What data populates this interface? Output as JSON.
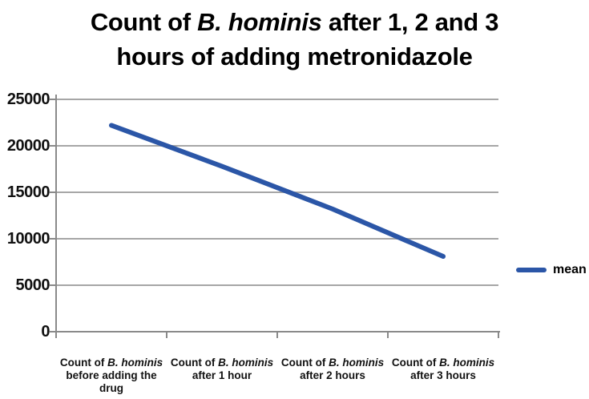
{
  "title": {
    "line1_prefix": "Count of ",
    "line1_italic": "B. hominis",
    "line1_suffix": " after 1, 2 and 3",
    "line2": "hours of adding metronidazole"
  },
  "legend": {
    "label": "mean"
  },
  "chart_data": {
    "type": "line",
    "title": "Count of B. hominis after 1, 2 and 3 hours of adding metronidazole",
    "categories": [
      "Count of B. hominis before adding the drug",
      "Count of B. hominis after 1 hour",
      "Count of B. hominis after 2 hours",
      "Count of B. hominis after 3 hours"
    ],
    "category_parts": [
      {
        "prefix": "Count of ",
        "italic": "B. hominis",
        "rest": "before adding the drug"
      },
      {
        "prefix": "Count of ",
        "italic": "B. hominis",
        "rest": "after 1 hour"
      },
      {
        "prefix": "Count of ",
        "italic": "B. hominis",
        "rest": "after 2 hours"
      },
      {
        "prefix": "Count of ",
        "italic": "B. hominis",
        "rest": "after 3 hours"
      }
    ],
    "series": [
      {
        "name": "mean",
        "values": [
          22200,
          17800,
          13200,
          8100
        ]
      }
    ],
    "yticks": [
      0,
      5000,
      10000,
      15000,
      20000,
      25000
    ],
    "ylim": [
      0,
      25000
    ],
    "xlabel": "",
    "ylabel": "",
    "grid": true,
    "legend_position": "right",
    "line_color": "#2B56A7",
    "gridline_color": "#a6a6a6",
    "axis_color": "#8a8a8a"
  }
}
